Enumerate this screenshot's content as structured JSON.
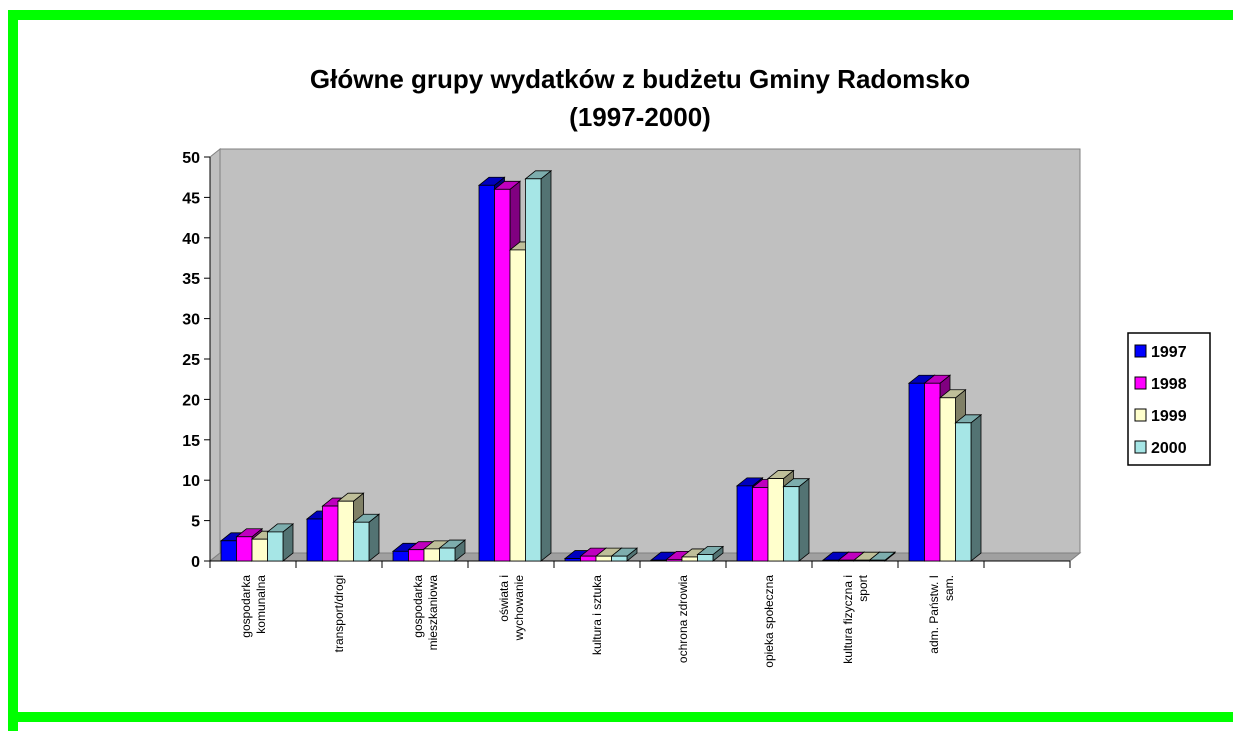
{
  "chart_data": {
    "type": "bar",
    "three_d": true,
    "title": "Główne grupy wydatków z budżetu Gminy Radomsko\n(1997-2000)",
    "categories": [
      "gospodarka\nkomunalna",
      "transport/drogi",
      "gospodarka\nmieszkaniowa",
      "oświata i\nwychowanie",
      "kultura i sztuka",
      "ochrona zdrowia",
      "opieka społeczna",
      "kultura fizyczna i\nsport",
      "adm. Państw. I\nsam.",
      null
    ],
    "series": [
      {
        "name": "1997",
        "color": "#0000ff",
        "values": [
          2.5,
          5.2,
          1.2,
          46.5,
          0.3,
          0.1,
          9.3,
          0.1,
          22.0,
          null
        ]
      },
      {
        "name": "1998",
        "color": "#ff00ff",
        "values": [
          3.0,
          6.8,
          1.4,
          46.0,
          0.6,
          0.2,
          9.1,
          0.1,
          22.0,
          null
        ]
      },
      {
        "name": "1999",
        "color": "#ffffcc",
        "values": [
          2.7,
          7.4,
          1.5,
          38.5,
          0.6,
          0.5,
          10.2,
          0.1,
          20.2,
          null
        ]
      },
      {
        "name": "2000",
        "color": "#a6e6e6",
        "values": [
          3.6,
          4.8,
          1.6,
          47.3,
          0.6,
          0.8,
          9.2,
          0.1,
          17.1,
          null
        ]
      }
    ],
    "ylim": [
      0,
      50
    ],
    "yticks": [
      0,
      5,
      10,
      15,
      20,
      25,
      30,
      35,
      40,
      45,
      50
    ],
    "grid": false,
    "legend": "right",
    "wall_color": "#c0c0c0"
  }
}
